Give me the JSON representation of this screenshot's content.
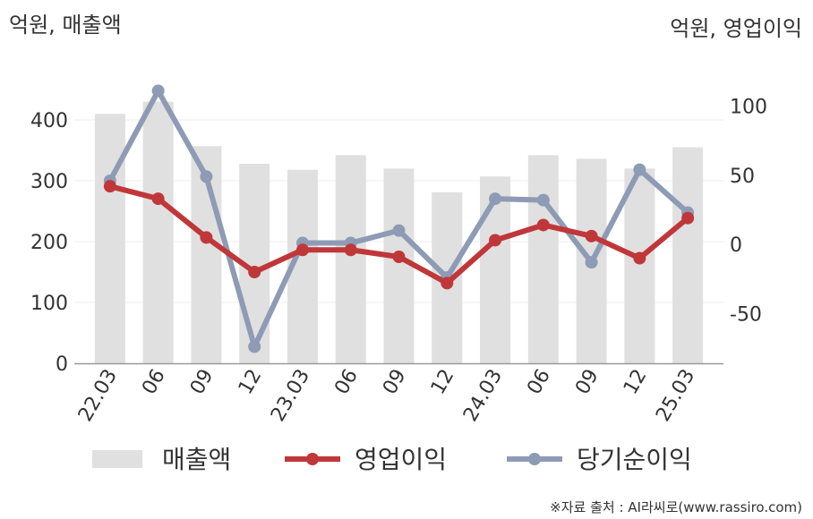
{
  "chart_data": {
    "type": "bar+line",
    "categories": [
      "22.03",
      "06",
      "09",
      "12",
      "23.03",
      "06",
      "09",
      "12",
      "24.03",
      "06",
      "09",
      "12",
      "25.03"
    ],
    "left_axis": {
      "label": "억원, 매출액",
      "ylim": [
        0,
        450
      ],
      "ticks": [
        0,
        100,
        200,
        300,
        400
      ]
    },
    "right_axis": {
      "label": "억원, 영업이익",
      "ylim": [
        -86,
        112
      ],
      "ticks": [
        -50,
        0,
        50,
        100
      ]
    },
    "series": [
      {
        "name": "매출액",
        "type": "bar",
        "axis": "left",
        "color": "#e0e0e0",
        "values": [
          410,
          430,
          357,
          328,
          318,
          342,
          320,
          281,
          307,
          342,
          336,
          320,
          355
        ]
      },
      {
        "name": "영업이익",
        "type": "line",
        "axis": "right",
        "color": "#c0373a",
        "values": [
          42,
          33,
          5,
          -20,
          -4,
          -4,
          -9,
          -28,
          3,
          14,
          6,
          -10,
          19
        ]
      },
      {
        "name": "당기순이익",
        "type": "line",
        "axis": "right",
        "color": "#8e9bb5",
        "values": [
          46,
          111,
          49,
          -74,
          1,
          1,
          10,
          -24,
          33,
          32,
          -13,
          54,
          23
        ]
      }
    ],
    "grid": true,
    "legend_position": "bottom"
  },
  "source": "※자료 출처 : AI라씨로(www.rassiro.com)"
}
